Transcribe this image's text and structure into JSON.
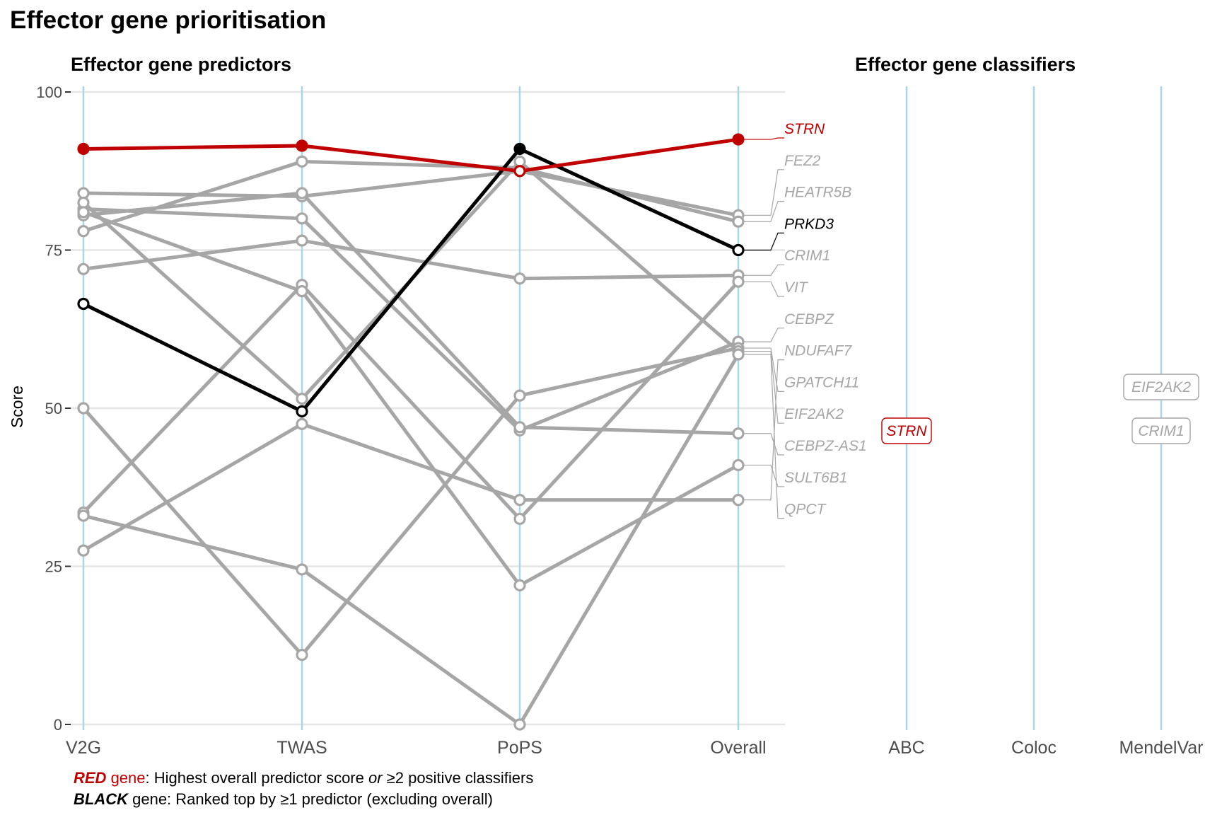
{
  "title": "Effector gene prioritisation",
  "predictors_title": "Effector gene predictors",
  "classifiers_title": "Effector gene classifiers",
  "ylabel": "Score",
  "colors": {
    "red": "#c00000",
    "black": "#000000",
    "grey": "#a6a6a6",
    "axis_line": "#a8d8e6",
    "grid": "#e5e5e5"
  },
  "legend": {
    "line1": {
      "keyword": "RED",
      "word": " gene",
      "text_before": ": Highest overall predictor score ",
      "italic": "or",
      "text_after": " ≥2 positive classifiers"
    },
    "line2": {
      "keyword": "BLACK",
      "text": " gene: Ranked top by ≥1 predictor (excluding overall)"
    }
  },
  "chart_data": {
    "type": "line",
    "categories": [
      "V2G",
      "TWAS",
      "PoPS",
      "Overall"
    ],
    "classifier_categories": [
      "ABC",
      "Coloc",
      "MendelVar"
    ],
    "ylim": [
      0,
      100
    ],
    "yticks": [
      0,
      25,
      50,
      75,
      100
    ],
    "series": [
      {
        "name": "FEZ2",
        "values": [
          84,
          83.5,
          87.5,
          80.5
        ],
        "color": "grey"
      },
      {
        "name": "HEATR5B",
        "values": [
          78,
          89,
          88,
          79.5
        ],
        "color": "grey"
      },
      {
        "name": "CRIM1",
        "values": [
          72,
          76.5,
          70.5,
          71
        ],
        "color": "grey"
      },
      {
        "name": "VIT",
        "values": [
          33.5,
          69.5,
          32.5,
          70
        ],
        "color": "grey"
      },
      {
        "name": "CEBPZ",
        "values": [
          81.5,
          80,
          46.5,
          60.5
        ],
        "color": "grey"
      },
      {
        "name": "NDUFAF7",
        "values": [
          27.5,
          47.5,
          35.5,
          35.5
        ],
        "color": "grey"
      },
      {
        "name": "GPATCH11",
        "values": [
          50,
          11,
          52,
          59.5
        ],
        "color": "grey"
      },
      {
        "name": "EIF2AK2",
        "values": [
          82.5,
          51.5,
          89,
          59
        ],
        "color": "grey"
      },
      {
        "name": "CEBPZ-AS1",
        "values": [
          80.5,
          84,
          47,
          46
        ],
        "color": "grey"
      },
      {
        "name": "SULT6B1",
        "values": [
          81,
          68.5,
          22,
          41
        ],
        "color": "grey"
      },
      {
        "name": "QPCT",
        "values": [
          33,
          24.5,
          0,
          58.5
        ],
        "color": "grey"
      },
      {
        "name": "PRKD3",
        "values": [
          66.5,
          49.5,
          91,
          75
        ],
        "color": "black"
      },
      {
        "name": "STRN",
        "values": [
          91,
          91.5,
          87.5,
          92.5
        ],
        "color": "red"
      }
    ],
    "gene_labels": [
      {
        "name": "STRN",
        "color": "red",
        "score": 92.5
      },
      {
        "name": "FEZ2",
        "color": "grey",
        "score": 80.5
      },
      {
        "name": "HEATR5B",
        "color": "grey",
        "score": 79.5
      },
      {
        "name": "PRKD3",
        "color": "black",
        "score": 75
      },
      {
        "name": "CRIM1",
        "color": "grey",
        "score": 71
      },
      {
        "name": "VIT",
        "color": "grey",
        "score": 70
      },
      {
        "name": "CEBPZ",
        "color": "grey",
        "score": 60.5
      },
      {
        "name": "NDUFAF7",
        "color": "grey",
        "score": 35.5
      },
      {
        "name": "GPATCH11",
        "color": "grey",
        "score": 59.5
      },
      {
        "name": "EIF2AK2",
        "color": "grey",
        "score": 59
      },
      {
        "name": "CEBPZ-AS1",
        "color": "grey",
        "score": 46
      },
      {
        "name": "SULT6B1",
        "color": "grey",
        "score": 41
      },
      {
        "name": "QPCT",
        "color": "grey",
        "score": 58.5
      }
    ],
    "classifier_labels": [
      {
        "classifier": "ABC",
        "gene": "STRN",
        "color": "red"
      },
      {
        "classifier": "MendelVar",
        "gene": "EIF2AK2",
        "color": "grey"
      },
      {
        "classifier": "MendelVar",
        "gene": "CRIM1",
        "color": "grey"
      }
    ]
  }
}
